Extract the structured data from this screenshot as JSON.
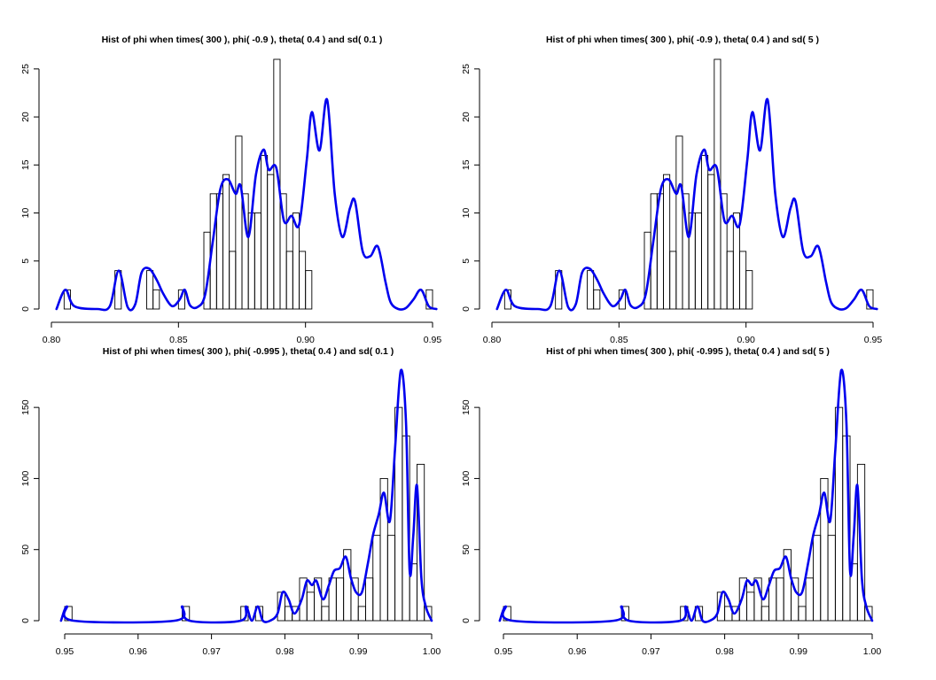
{
  "chart_data": [
    {
      "type": "bar",
      "title": "Hist of phi when times( 300 ), phi( -0.9 ), theta( 0.4 ) and sd( 0.1 )",
      "xlim": [
        0.8,
        0.95
      ],
      "ylim": [
        0,
        26
      ],
      "x_ticks": [
        0.8,
        0.85,
        0.9,
        0.95
      ],
      "x_tick_labels": [
        "0.80",
        "0.85",
        "0.90",
        "0.95"
      ],
      "y_ticks": [
        0,
        5,
        10,
        15,
        20,
        25
      ],
      "y_tick_labels": [
        "0",
        "5",
        "10",
        "15",
        "20",
        "25"
      ],
      "bin_width": 0.0025,
      "bins": [
        {
          "start": 0.805,
          "count": 2
        },
        {
          "start": 0.825,
          "count": 4
        },
        {
          "start": 0.8375,
          "count": 4
        },
        {
          "start": 0.84,
          "count": 2
        },
        {
          "start": 0.85,
          "count": 2
        },
        {
          "start": 0.86,
          "count": 8
        },
        {
          "start": 0.8625,
          "count": 12
        },
        {
          "start": 0.865,
          "count": 12
        },
        {
          "start": 0.8675,
          "count": 14
        },
        {
          "start": 0.87,
          "count": 6
        },
        {
          "start": 0.8725,
          "count": 18
        },
        {
          "start": 0.875,
          "count": 12
        },
        {
          "start": 0.8775,
          "count": 10
        },
        {
          "start": 0.88,
          "count": 10
        },
        {
          "start": 0.8825,
          "count": 16
        },
        {
          "start": 0.885,
          "count": 14
        },
        {
          "start": 0.8875,
          "count": 26
        },
        {
          "start": 0.89,
          "count": 12
        },
        {
          "start": 0.8925,
          "count": 6
        },
        {
          "start": 0.895,
          "count": 10
        },
        {
          "start": 0.8975,
          "count": 6
        },
        {
          "start": 0.9,
          "count": 4
        },
        {
          "start": 0.9475,
          "count": 2
        }
      ],
      "density": {
        "x": [
          0.802,
          0.8055,
          0.809,
          0.818,
          0.823,
          0.8265,
          0.83,
          0.833,
          0.8355,
          0.8385,
          0.8415,
          0.844,
          0.8475,
          0.8505,
          0.8525,
          0.8545,
          0.8575,
          0.8605,
          0.8635,
          0.8665,
          0.8695,
          0.8725,
          0.8745,
          0.8775,
          0.8805,
          0.8835,
          0.8855,
          0.8885,
          0.8915,
          0.8945,
          0.8975,
          0.9005,
          0.9025,
          0.9055,
          0.9085,
          0.9115,
          0.9145,
          0.9175,
          0.9195,
          0.9225,
          0.9255,
          0.9285,
          0.9315,
          0.9335,
          0.9365,
          0.9395,
          0.9425,
          0.9455,
          0.9485,
          0.9515
        ],
        "y": [
          0,
          2,
          0.3,
          0,
          0.3,
          4,
          0.2,
          0.5,
          3.8,
          4.2,
          3,
          1.6,
          0.3,
          1,
          2,
          0.4,
          0.2,
          1.5,
          7,
          12.5,
          13.5,
          12,
          12.8,
          7.5,
          14,
          16.6,
          14.5,
          14.7,
          9.2,
          9.7,
          8.8,
          15.5,
          20.5,
          16.5,
          21.8,
          12,
          7.5,
          10.5,
          11.2,
          6,
          5.5,
          6.5,
          2.8,
          0.7,
          0,
          0.1,
          1,
          2,
          0.3,
          0
        ]
      }
    },
    {
      "type": "bar",
      "title": "Hist of phi when times( 300 ), phi( -0.9 ), theta( 0.4 ) and sd( 5 )",
      "xlim": [
        0.8,
        0.95
      ],
      "ylim": [
        0,
        26
      ],
      "x_ticks": [
        0.8,
        0.85,
        0.9,
        0.95
      ],
      "x_tick_labels": [
        "0.80",
        "0.85",
        "0.90",
        "0.95"
      ],
      "y_ticks": [
        0,
        5,
        10,
        15,
        20,
        25
      ],
      "y_tick_labels": [
        "0",
        "5",
        "10",
        "15",
        "20",
        "25"
      ],
      "bin_width": 0.0025,
      "bins": [
        {
          "start": 0.805,
          "count": 2
        },
        {
          "start": 0.825,
          "count": 4
        },
        {
          "start": 0.8375,
          "count": 4
        },
        {
          "start": 0.84,
          "count": 2
        },
        {
          "start": 0.85,
          "count": 2
        },
        {
          "start": 0.86,
          "count": 8
        },
        {
          "start": 0.8625,
          "count": 12
        },
        {
          "start": 0.865,
          "count": 12
        },
        {
          "start": 0.8675,
          "count": 14
        },
        {
          "start": 0.87,
          "count": 6
        },
        {
          "start": 0.8725,
          "count": 18
        },
        {
          "start": 0.875,
          "count": 12
        },
        {
          "start": 0.8775,
          "count": 10
        },
        {
          "start": 0.88,
          "count": 10
        },
        {
          "start": 0.8825,
          "count": 16
        },
        {
          "start": 0.885,
          "count": 14
        },
        {
          "start": 0.8875,
          "count": 26
        },
        {
          "start": 0.89,
          "count": 12
        },
        {
          "start": 0.8925,
          "count": 6
        },
        {
          "start": 0.895,
          "count": 10
        },
        {
          "start": 0.8975,
          "count": 6
        },
        {
          "start": 0.9,
          "count": 4
        },
        {
          "start": 0.9475,
          "count": 2
        }
      ],
      "density": {
        "x": [
          0.802,
          0.8055,
          0.809,
          0.818,
          0.823,
          0.8265,
          0.83,
          0.833,
          0.8355,
          0.8385,
          0.8415,
          0.844,
          0.8475,
          0.8505,
          0.8525,
          0.8545,
          0.8575,
          0.8605,
          0.8635,
          0.8665,
          0.8695,
          0.8725,
          0.8745,
          0.8775,
          0.8805,
          0.8835,
          0.8855,
          0.8885,
          0.8915,
          0.8945,
          0.8975,
          0.9005,
          0.9025,
          0.9055,
          0.9085,
          0.9115,
          0.9145,
          0.9175,
          0.9195,
          0.9225,
          0.9255,
          0.9285,
          0.9315,
          0.9335,
          0.9365,
          0.9395,
          0.9425,
          0.9455,
          0.9485,
          0.9515
        ],
        "y": [
          0,
          2,
          0.3,
          0,
          0.3,
          4,
          0.2,
          0.5,
          3.8,
          4.2,
          3,
          1.6,
          0.3,
          1,
          2,
          0.4,
          0.2,
          1.5,
          7,
          12.5,
          13.5,
          12,
          12.8,
          7.5,
          14,
          16.6,
          14.5,
          14.7,
          9.2,
          9.7,
          8.8,
          15.5,
          20.5,
          16.5,
          21.8,
          12,
          7.5,
          10.5,
          11.2,
          6,
          5.5,
          6.5,
          2.8,
          0.7,
          0,
          0.1,
          1,
          2,
          0.3,
          0
        ]
      }
    },
    {
      "type": "bar",
      "title": "Hist of phi when times( 300 ), phi( -0.995 ), theta( 0.4 ) and sd( 0.1 )",
      "xlim": [
        0.95,
        1.0
      ],
      "ylim": [
        0,
        175
      ],
      "x_ticks": [
        0.95,
        0.96,
        0.97,
        0.98,
        0.99,
        1.0
      ],
      "x_tick_labels": [
        "0.95",
        "0.96",
        "0.97",
        "0.98",
        "0.99",
        "1.00"
      ],
      "y_ticks": [
        0,
        50,
        100,
        150
      ],
      "y_tick_labels": [
        "0",
        "50",
        "100",
        "150"
      ],
      "bin_width": 0.001,
      "bins": [
        {
          "start": 0.95,
          "count": 10
        },
        {
          "start": 0.966,
          "count": 10
        },
        {
          "start": 0.974,
          "count": 10
        },
        {
          "start": 0.976,
          "count": 10
        },
        {
          "start": 0.979,
          "count": 20
        },
        {
          "start": 0.98,
          "count": 10
        },
        {
          "start": 0.981,
          "count": 10
        },
        {
          "start": 0.982,
          "count": 30
        },
        {
          "start": 0.983,
          "count": 20
        },
        {
          "start": 0.984,
          "count": 30
        },
        {
          "start": 0.985,
          "count": 10
        },
        {
          "start": 0.986,
          "count": 30
        },
        {
          "start": 0.987,
          "count": 30
        },
        {
          "start": 0.988,
          "count": 50
        },
        {
          "start": 0.989,
          "count": 30
        },
        {
          "start": 0.99,
          "count": 10
        },
        {
          "start": 0.991,
          "count": 30
        },
        {
          "start": 0.992,
          "count": 60
        },
        {
          "start": 0.993,
          "count": 100
        },
        {
          "start": 0.994,
          "count": 60
        },
        {
          "start": 0.995,
          "count": 150
        },
        {
          "start": 0.996,
          "count": 130
        },
        {
          "start": 0.997,
          "count": 40
        },
        {
          "start": 0.998,
          "count": 110
        },
        {
          "start": 0.999,
          "count": 10
        }
      ],
      "density": {
        "x": [
          0.9495,
          0.9503,
          0.9512,
          0.965,
          0.966,
          0.967,
          0.974,
          0.9747,
          0.9755,
          0.9763,
          0.977,
          0.978,
          0.979,
          0.9797,
          0.9805,
          0.9813,
          0.9823,
          0.983,
          0.9837,
          0.9843,
          0.9852,
          0.986,
          0.9867,
          0.9875,
          0.9883,
          0.989,
          0.9897,
          0.9905,
          0.9913,
          0.992,
          0.9928,
          0.9935,
          0.9943,
          0.995,
          0.9958,
          0.9965,
          0.997,
          0.9975,
          0.998,
          0.9986,
          0.9992,
          1.0
        ],
        "y": [
          0,
          10,
          0,
          0,
          10,
          0,
          0,
          10,
          0,
          10,
          0,
          0,
          5,
          20,
          15,
          5,
          15,
          28,
          25,
          28,
          15,
          25,
          35,
          37,
          45,
          30,
          20,
          20,
          40,
          60,
          75,
          90,
          70,
          120,
          176,
          140,
          35,
          60,
          95,
          30,
          10,
          0
        ]
      }
    },
    {
      "type": "bar",
      "title": "Hist of phi when times( 300 ), phi( -0.995 ), theta( 0.4 ) and sd( 5 )",
      "xlim": [
        0.95,
        1.0
      ],
      "ylim": [
        0,
        175
      ],
      "x_ticks": [
        0.95,
        0.96,
        0.97,
        0.98,
        0.99,
        1.0
      ],
      "x_tick_labels": [
        "0.95",
        "0.96",
        "0.97",
        "0.98",
        "0.99",
        "1.00"
      ],
      "y_ticks": [
        0,
        50,
        100,
        150
      ],
      "y_tick_labels": [
        "0",
        "50",
        "100",
        "150"
      ],
      "bin_width": 0.001,
      "bins": [
        {
          "start": 0.95,
          "count": 10
        },
        {
          "start": 0.966,
          "count": 10
        },
        {
          "start": 0.974,
          "count": 10
        },
        {
          "start": 0.976,
          "count": 10
        },
        {
          "start": 0.979,
          "count": 20
        },
        {
          "start": 0.98,
          "count": 10
        },
        {
          "start": 0.981,
          "count": 10
        },
        {
          "start": 0.982,
          "count": 30
        },
        {
          "start": 0.983,
          "count": 20
        },
        {
          "start": 0.984,
          "count": 30
        },
        {
          "start": 0.985,
          "count": 10
        },
        {
          "start": 0.986,
          "count": 30
        },
        {
          "start": 0.987,
          "count": 30
        },
        {
          "start": 0.988,
          "count": 50
        },
        {
          "start": 0.989,
          "count": 30
        },
        {
          "start": 0.99,
          "count": 10
        },
        {
          "start": 0.991,
          "count": 30
        },
        {
          "start": 0.992,
          "count": 60
        },
        {
          "start": 0.993,
          "count": 100
        },
        {
          "start": 0.994,
          "count": 60
        },
        {
          "start": 0.995,
          "count": 150
        },
        {
          "start": 0.996,
          "count": 130
        },
        {
          "start": 0.997,
          "count": 40
        },
        {
          "start": 0.998,
          "count": 110
        },
        {
          "start": 0.999,
          "count": 10
        }
      ],
      "density": {
        "x": [
          0.9495,
          0.9503,
          0.9512,
          0.965,
          0.966,
          0.967,
          0.974,
          0.9747,
          0.9755,
          0.9763,
          0.977,
          0.978,
          0.979,
          0.9797,
          0.9805,
          0.9813,
          0.9823,
          0.983,
          0.9837,
          0.9843,
          0.9852,
          0.986,
          0.9867,
          0.9875,
          0.9883,
          0.989,
          0.9897,
          0.9905,
          0.9913,
          0.992,
          0.9928,
          0.9935,
          0.9943,
          0.995,
          0.9958,
          0.9965,
          0.997,
          0.9975,
          0.998,
          0.9986,
          0.9992,
          1.0
        ],
        "y": [
          0,
          10,
          0,
          0,
          10,
          0,
          0,
          10,
          0,
          10,
          0,
          0,
          5,
          20,
          15,
          5,
          15,
          28,
          25,
          28,
          15,
          25,
          35,
          37,
          45,
          30,
          20,
          20,
          40,
          60,
          75,
          90,
          70,
          120,
          176,
          140,
          35,
          60,
          95,
          30,
          10,
          0
        ]
      }
    }
  ],
  "colors": {
    "density_line": "#0000ee",
    "bar_outline": "#000000",
    "background": "#ffffff"
  }
}
